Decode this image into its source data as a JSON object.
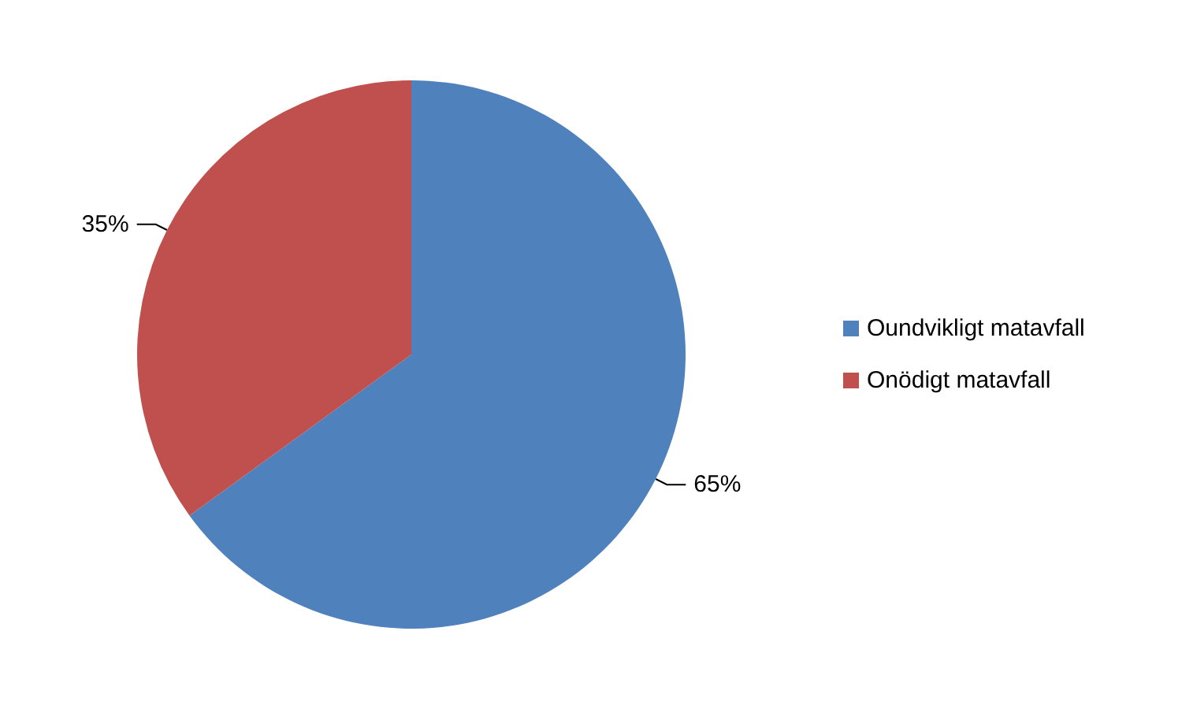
{
  "chart_data": {
    "type": "pie",
    "categories": [
      "Oundvikligt matavfall",
      "Onödigt matavfall"
    ],
    "values": [
      65,
      35
    ],
    "colors": [
      "#4f81bd",
      "#c0504d"
    ],
    "value_labels": [
      "65%",
      "35%"
    ],
    "legend": "right"
  }
}
